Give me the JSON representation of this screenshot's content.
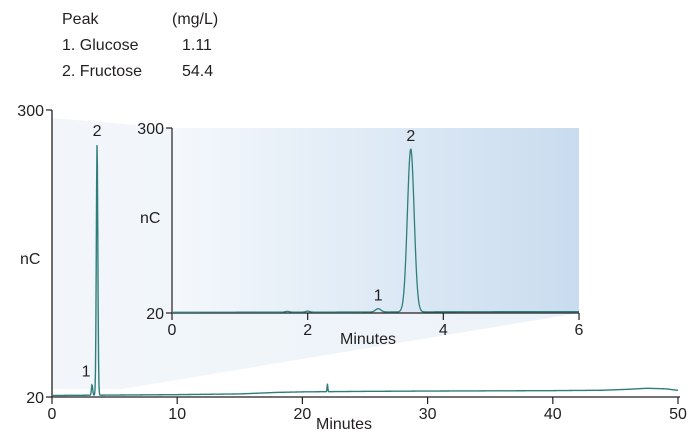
{
  "legend": {
    "header_peak": "Peak",
    "header_unit": "(mg/L)",
    "rows": [
      {
        "label": "1. Glucose",
        "value": "1.11"
      },
      {
        "label": "2. Fructose",
        "value": "54.4"
      }
    ]
  },
  "colors": {
    "trace": "#2e7e7a",
    "axis": "#231f20",
    "inset_bg_light": "#f4f8fc",
    "inset_bg_dark": "#c9dcef"
  },
  "chart_data": [
    {
      "type": "line",
      "name": "main",
      "xlabel": "Minutes",
      "ylabel": "nC",
      "xlim": [
        0,
        50
      ],
      "ylim": [
        20,
        300
      ],
      "x_ticks": [
        "0",
        "10",
        "20",
        "30",
        "40",
        "50"
      ],
      "y_ticks": [
        "20",
        "300"
      ],
      "baseline": [
        [
          0,
          21.5
        ],
        [
          10,
          22.3
        ],
        [
          15,
          23.0
        ],
        [
          18,
          24.5
        ],
        [
          20,
          25.0
        ],
        [
          25,
          25.5
        ],
        [
          30,
          25.8
        ],
        [
          35,
          26.0
        ],
        [
          40,
          26.2
        ],
        [
          44,
          26.6
        ],
        [
          46,
          27.5
        ],
        [
          47.5,
          28.5
        ],
        [
          49,
          28.0
        ],
        [
          50,
          26.5
        ]
      ],
      "peaks": [
        {
          "label": "1",
          "x": 3.2,
          "y": 32,
          "width": 0.05
        },
        {
          "label": "2",
          "x": 3.6,
          "y": 267,
          "width": 0.06
        },
        {
          "label": "",
          "x": 22.0,
          "y": 33,
          "width": 0.03
        }
      ]
    },
    {
      "type": "line",
      "name": "inset",
      "xlabel": "Minutes",
      "ylabel": "nC",
      "xlim": [
        0,
        6
      ],
      "ylim": [
        20,
        300
      ],
      "x_ticks": [
        "0",
        "2",
        "4",
        "6"
      ],
      "y_ticks": [
        "20",
        "300"
      ],
      "baseline": [
        [
          0,
          21.0
        ],
        [
          1,
          21.2
        ],
        [
          2,
          21.3
        ],
        [
          3,
          21.5
        ],
        [
          4,
          21.8
        ],
        [
          5,
          22.0
        ],
        [
          6,
          22.0
        ]
      ],
      "peaks": [
        {
          "label": "",
          "x": 1.7,
          "y": 22.5,
          "width": 0.03
        },
        {
          "label": "",
          "x": 2.0,
          "y": 22.8,
          "width": 0.03
        },
        {
          "label": "1",
          "x": 3.04,
          "y": 26.5,
          "width": 0.04
        },
        {
          "label": "2",
          "x": 3.52,
          "y": 268,
          "width": 0.05
        }
      ]
    }
  ]
}
